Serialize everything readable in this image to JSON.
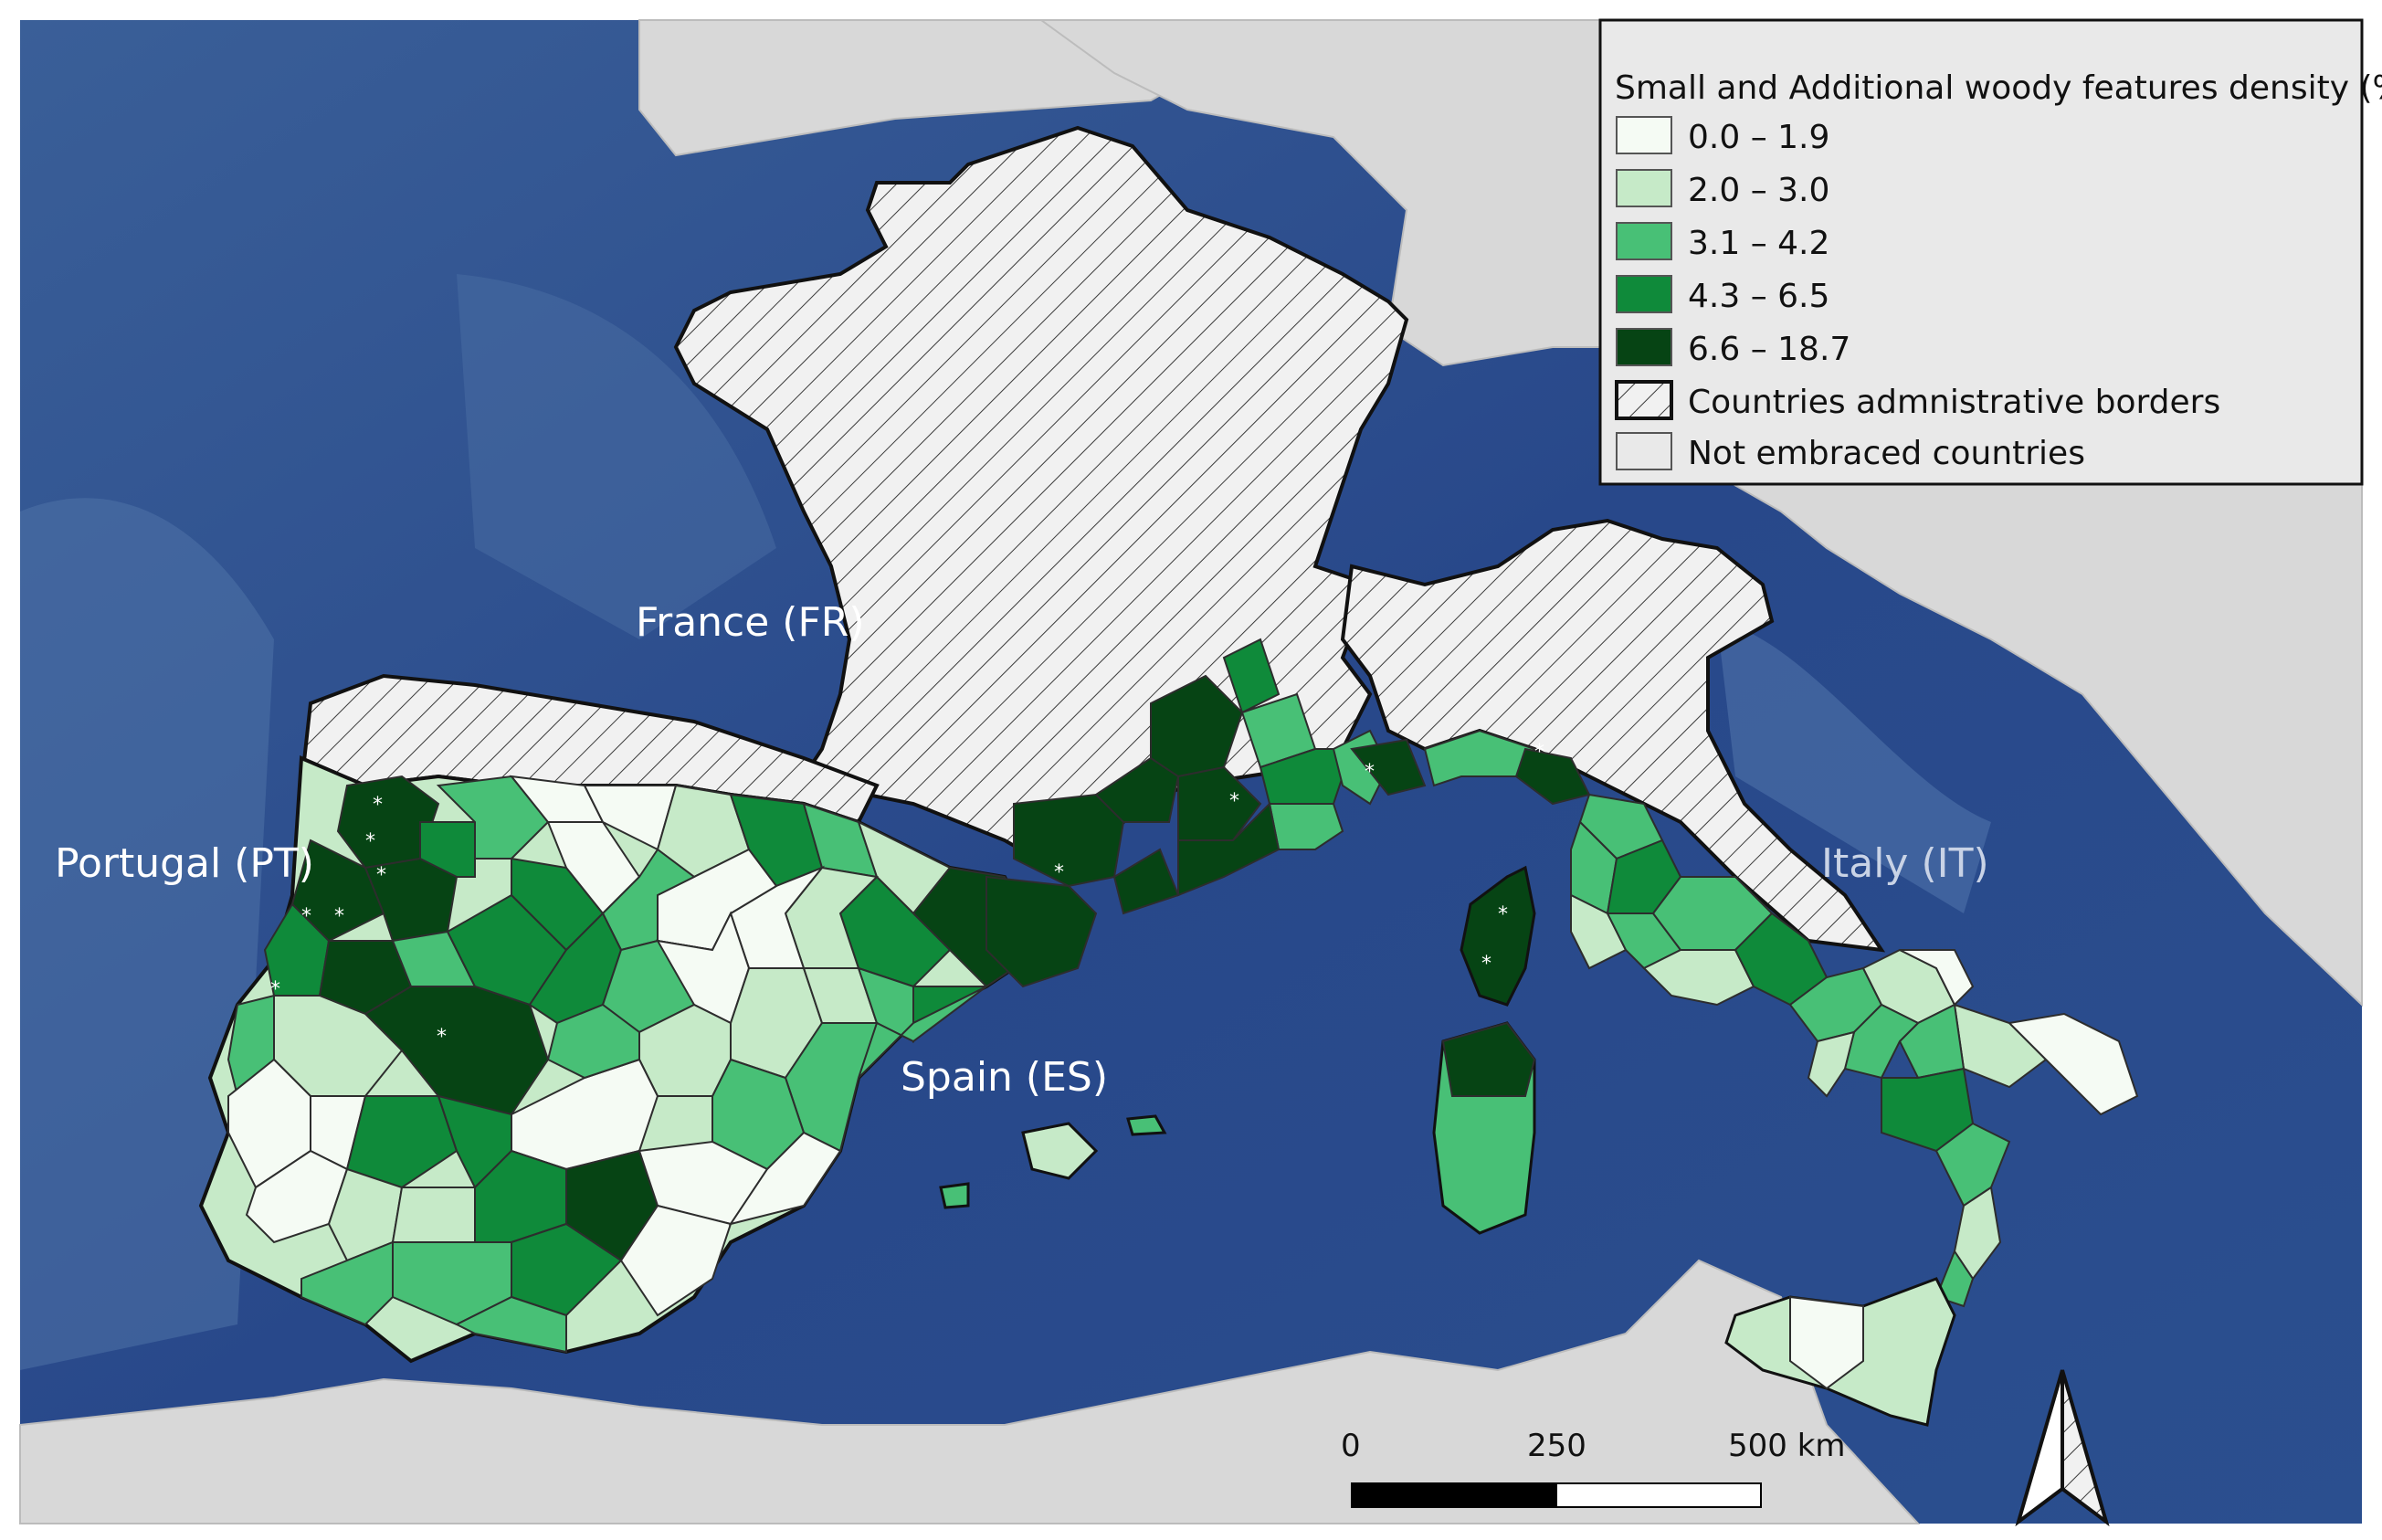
{
  "colors": {
    "sea": "#2c4a86",
    "land": "#dcdcdc",
    "hatch": "#3a3a3a",
    "c0": "#f5fbf4",
    "c1": "#c6eac8",
    "c2": "#48c076",
    "c3": "#0f8a3a",
    "c4": "#064414"
  },
  "labels": {
    "france": "France (FR)",
    "portugal": "Portugal (PT)",
    "spain": "Spain (ES)",
    "italy": "Italy (IT)"
  },
  "legend": {
    "title": "Small and Additional woody features density (%)",
    "items": [
      {
        "label": "0.0 – 1.9"
      },
      {
        "label": "2.0 – 3.0"
      },
      {
        "label": "3.1 – 4.2"
      },
      {
        "label": "4.3 – 6.5"
      },
      {
        "label": "6.6 – 18.7"
      },
      {
        "label": "Countries admnistrative borders"
      },
      {
        "label": "Not embraced countries"
      }
    ]
  },
  "scale_bar": {
    "label_0": "0",
    "label_250": "250",
    "label_500": "500 km"
  },
  "marker_symbol": "*"
}
